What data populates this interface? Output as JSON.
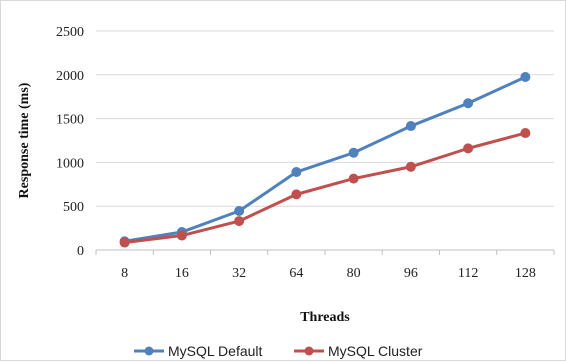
{
  "chart_data": {
    "type": "line",
    "title": "",
    "xlabel": "Threads",
    "ylabel": "Response time (ms)",
    "categories": [
      "8",
      "16",
      "32",
      "64",
      "80",
      "96",
      "112",
      "128"
    ],
    "ylim": [
      0,
      2500
    ],
    "yticks": [
      0,
      500,
      1000,
      1500,
      2000,
      2500
    ],
    "grid": true,
    "legend_position": "bottom",
    "series": [
      {
        "name": "MySQL Default",
        "color": "#4f81bd",
        "values": [
          100,
          205,
          445,
          890,
          1110,
          1415,
          1675,
          1975
        ]
      },
      {
        "name": "MySQL Cluster",
        "color": "#c0504d",
        "values": [
          85,
          165,
          330,
          635,
          815,
          950,
          1160,
          1335
        ]
      }
    ]
  }
}
